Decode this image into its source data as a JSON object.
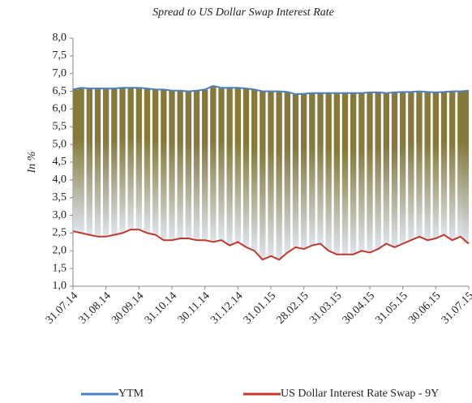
{
  "chart_data": {
    "type": "line",
    "title": "Spread to US Dollar Swap Interest Rate",
    "y_label": "In %",
    "categories": [
      "31.07.14",
      null,
      null,
      null,
      "31.08.14",
      null,
      null,
      null,
      "30.09.14",
      null,
      null,
      null,
      "31.10.14",
      null,
      null,
      null,
      "30.11.14",
      null,
      null,
      null,
      "31.12.14",
      null,
      null,
      null,
      "31.01.15",
      null,
      null,
      null,
      "28.02.15",
      null,
      null,
      null,
      "31.03.15",
      null,
      null,
      null,
      "30.04.15",
      null,
      null,
      null,
      "31.05.15",
      null,
      null,
      null,
      "30.06.15",
      null,
      null,
      null,
      "31.07.15"
    ],
    "series": [
      {
        "name": "YTM",
        "color": "#4a7fc1",
        "values": [
          6.55,
          6.6,
          6.58,
          6.58,
          6.58,
          6.58,
          6.6,
          6.6,
          6.6,
          6.58,
          6.55,
          6.55,
          6.52,
          6.52,
          6.5,
          6.52,
          6.55,
          6.65,
          6.6,
          6.6,
          6.6,
          6.58,
          6.55,
          6.5,
          6.5,
          6.5,
          6.48,
          6.42,
          6.43,
          6.45,
          6.45,
          6.45,
          6.45,
          6.45,
          6.45,
          6.45,
          6.47,
          6.47,
          6.45,
          6.47,
          6.48,
          6.48,
          6.5,
          6.48,
          6.47,
          6.48,
          6.5,
          6.5,
          6.52
        ]
      },
      {
        "name": "US Dollar Interest Rate Swap - 9Y",
        "color": "#c0392b",
        "values": [
          2.55,
          2.5,
          2.45,
          2.4,
          2.4,
          2.45,
          2.5,
          2.6,
          2.6,
          2.5,
          2.45,
          2.3,
          2.3,
          2.35,
          2.35,
          2.3,
          2.3,
          2.25,
          2.3,
          2.15,
          2.25,
          2.1,
          2.0,
          1.75,
          1.85,
          1.75,
          1.95,
          2.1,
          2.05,
          2.15,
          2.2,
          2.0,
          1.9,
          1.9,
          1.9,
          2.0,
          1.95,
          2.05,
          2.2,
          2.1,
          2.2,
          2.3,
          2.4,
          2.3,
          2.35,
          2.45,
          2.3,
          2.4,
          2.2
        ]
      }
    ],
    "fill_colors": [
      "#857a3b",
      "#dde4ee"
    ],
    "ylim": [
      1,
      8
    ],
    "yticks": [
      {
        "value": 1,
        "label": "1,0"
      },
      {
        "value": 1.5,
        "label": "1,5"
      },
      {
        "value": 2,
        "label": "2,0"
      },
      {
        "value": 2.5,
        "label": "2,5"
      },
      {
        "value": 3,
        "label": "3,0"
      },
      {
        "value": 3.5,
        "label": "3,5"
      },
      {
        "value": 4,
        "label": "4,0"
      },
      {
        "value": 4.5,
        "label": "4,5"
      },
      {
        "value": 5,
        "label": "5,0"
      },
      {
        "value": 5.5,
        "label": "5,5"
      },
      {
        "value": 6,
        "label": "6,0"
      },
      {
        "value": 6.5,
        "label": "6,5"
      },
      {
        "value": 7,
        "label": "7,0"
      },
      {
        "value": 7.5,
        "label": "7,5"
      },
      {
        "value": 8,
        "label": "8,0"
      }
    ],
    "legend": "bottom"
  }
}
